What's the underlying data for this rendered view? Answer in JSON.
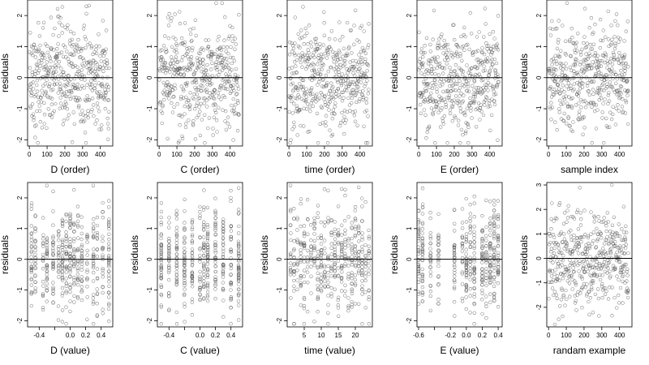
{
  "chart_data": [
    {
      "type": "scatter",
      "kind": "order",
      "xlabel": "D (order)",
      "ylabel": "residuals",
      "xlim": [
        -10,
        470
      ],
      "ylim": [
        -2.2,
        2.5
      ],
      "xticks": [
        0,
        100,
        200,
        300,
        400
      ],
      "yticks": [
        -2,
        -1,
        0,
        1,
        2
      ],
      "xtick_labels": [
        "0",
        "100",
        "200",
        "300",
        "400"
      ],
      "ytick_labels": [
        "-2",
        "-1",
        "0",
        "1",
        "2"
      ],
      "reference_line_y": 0,
      "points_summary": "about 450 residuals vs observation order, centered at 0, mostly between -1.8 and 1.8"
    },
    {
      "type": "scatter",
      "kind": "order",
      "xlabel": "C (order)",
      "ylabel": "residuals",
      "xlim": [
        -10,
        470
      ],
      "ylim": [
        -2.2,
        2.5
      ],
      "xticks": [
        0,
        100,
        200,
        300,
        400
      ],
      "yticks": [
        -2,
        -1,
        0,
        1,
        2
      ],
      "xtick_labels": [
        "0",
        "100",
        "200",
        "300",
        "400"
      ],
      "ytick_labels": [
        "-2",
        "-1",
        "0",
        "1",
        "2"
      ],
      "reference_line_y": 0,
      "points_summary": "about 450 residuals vs observation order, centered at 0"
    },
    {
      "type": "scatter",
      "kind": "order",
      "xlabel": "time (order)",
      "ylabel": "residuals",
      "xlim": [
        -10,
        470
      ],
      "ylim": [
        -2.2,
        2.5
      ],
      "xticks": [
        0,
        100,
        200,
        300,
        400
      ],
      "yticks": [
        -2,
        -1,
        0,
        1,
        2
      ],
      "xtick_labels": [
        "0",
        "100",
        "200",
        "300",
        "400"
      ],
      "ytick_labels": [
        "-2",
        "-1",
        "0",
        "1",
        "2"
      ],
      "reference_line_y": 0,
      "points_summary": "about 450 residuals vs observation order, centered at 0"
    },
    {
      "type": "scatter",
      "kind": "order",
      "xlabel": "E (order)",
      "ylabel": "residuals",
      "xlim": [
        -10,
        470
      ],
      "ylim": [
        -2.2,
        2.5
      ],
      "xticks": [
        0,
        100,
        200,
        300,
        400
      ],
      "yticks": [
        -2,
        -1,
        0,
        1,
        2
      ],
      "xtick_labels": [
        "0",
        "100",
        "200",
        "300",
        "400"
      ],
      "ytick_labels": [
        "-2",
        "-1",
        "0",
        "1",
        "2"
      ],
      "reference_line_y": 0,
      "points_summary": "about 450 residuals vs observation order, centered at 0"
    },
    {
      "type": "scatter",
      "kind": "order",
      "xlabel": "sample index",
      "ylabel": "residuals",
      "xlim": [
        -10,
        470
      ],
      "ylim": [
        -2.2,
        2.5
      ],
      "xticks": [
        0,
        100,
        200,
        300,
        400
      ],
      "yticks": [
        -2,
        -1,
        0,
        1,
        2
      ],
      "xtick_labels": [
        "0",
        "100",
        "200",
        "300",
        "400"
      ],
      "ytick_labels": [
        "-2",
        "-1",
        "0",
        "1",
        "2"
      ],
      "reference_line_y": 0,
      "points_summary": "about 450 residuals vs sample index, centered at 0"
    },
    {
      "type": "scatter",
      "kind": "value",
      "xlabel": "D (value)",
      "ylabel": "residuals",
      "xlim": [
        -0.55,
        0.55
      ],
      "ylim": [
        -2.2,
        2.5
      ],
      "xticks": [
        -0.4,
        -0.2,
        0.0,
        0.2,
        0.4
      ],
      "yticks": [
        -2,
        -1,
        0,
        1,
        2
      ],
      "xtick_labels": [
        "-0.4",
        "",
        "0.0",
        "0.2",
        "0.4"
      ],
      "ytick_labels": [
        "-2",
        "-1",
        "0",
        "1",
        "2"
      ],
      "reference_line_y": 0,
      "levels": [
        -0.5,
        -0.45,
        -0.35,
        -0.3,
        -0.22,
        -0.15,
        -0.1,
        -0.05,
        0.0,
        0.05,
        0.1,
        0.15,
        0.22,
        0.3,
        0.35,
        0.42,
        0.5
      ],
      "points_summary": "residuals vs D value, points stacked in vertical columns at discrete levels"
    },
    {
      "type": "scatter",
      "kind": "value",
      "xlabel": "C (value)",
      "ylabel": "residuals",
      "xlim": [
        -0.55,
        0.55
      ],
      "ylim": [
        -2.2,
        2.5
      ],
      "xticks": [
        -0.4,
        -0.2,
        0.0,
        0.2,
        0.4
      ],
      "yticks": [
        -2,
        -1,
        0,
        1,
        2
      ],
      "xtick_labels": [
        "-0.4",
        "",
        "0.0",
        "0.2",
        "0.4"
      ],
      "ytick_labels": [
        "-2",
        "-1",
        "0",
        "1",
        "2"
      ],
      "reference_line_y": 0,
      "levels": [
        -0.5,
        -0.4,
        -0.3,
        -0.2,
        -0.1,
        0.0,
        0.05,
        0.1,
        0.2,
        0.3,
        0.4,
        0.5
      ],
      "points_summary": "residuals vs C value, points stacked in vertical columns at discrete levels"
    },
    {
      "type": "scatter",
      "kind": "value",
      "xlabel": "time (value)",
      "ylabel": "residuals",
      "xlim": [
        0,
        25
      ],
      "ylim": [
        -2.2,
        2.5
      ],
      "xticks": [
        5,
        10,
        15,
        20
      ],
      "yticks": [
        -2,
        -1,
        0,
        1,
        2
      ],
      "xtick_labels": [
        "5",
        "10",
        "15",
        "20"
      ],
      "ytick_labels": [
        "-2",
        "-1",
        "0",
        "1",
        "2"
      ],
      "reference_line_y": 0,
      "levels": [
        1,
        2,
        3,
        4,
        5,
        6,
        7,
        8,
        9,
        10,
        11,
        12,
        13,
        14,
        15,
        16,
        17,
        18,
        19,
        20,
        21,
        22,
        23,
        24
      ],
      "points_summary": "residuals vs time value, points stacked in columns at integer times 1-24"
    },
    {
      "type": "scatter",
      "kind": "value",
      "xlabel": "E (value)",
      "ylabel": "residuals",
      "xlim": [
        -0.62,
        0.45
      ],
      "ylim": [
        -2.2,
        2.5
      ],
      "xticks": [
        -0.6,
        -0.4,
        -0.2,
        0.0,
        0.2,
        0.4
      ],
      "yticks": [
        -2,
        -1,
        0,
        1,
        2
      ],
      "xtick_labels": [
        "-0.6",
        "",
        "-0.2",
        "0.0",
        "0.2",
        "0.4"
      ],
      "ytick_labels": [
        "-2",
        "-1",
        "0",
        "1",
        "2"
      ],
      "reference_line_y": 0,
      "levels": [
        -0.6,
        -0.55,
        -0.45,
        -0.35,
        -0.15,
        -0.05,
        0.0,
        0.05,
        0.1,
        0.2,
        0.25,
        0.3,
        0.35,
        0.4
      ],
      "points_summary": "residuals vs E value, dense columns near 0.0 to 0.3"
    },
    {
      "type": "scatter",
      "kind": "order",
      "xlabel": "randam example",
      "ylabel": "residuals",
      "xlim": [
        -10,
        470
      ],
      "ylim": [
        -2.8,
        3.1
      ],
      "xticks": [
        0,
        100,
        200,
        300,
        400
      ],
      "yticks": [
        -2,
        -1,
        0,
        1,
        2,
        3
      ],
      "xtick_labels": [
        "0",
        "100",
        "200",
        "300",
        "400"
      ],
      "ytick_labels": [
        "-2",
        "-1",
        "0",
        "1",
        "2",
        "3"
      ],
      "reference_line_y": 0,
      "points_summary": "about 450 random normal values vs index, centered at 0"
    }
  ]
}
